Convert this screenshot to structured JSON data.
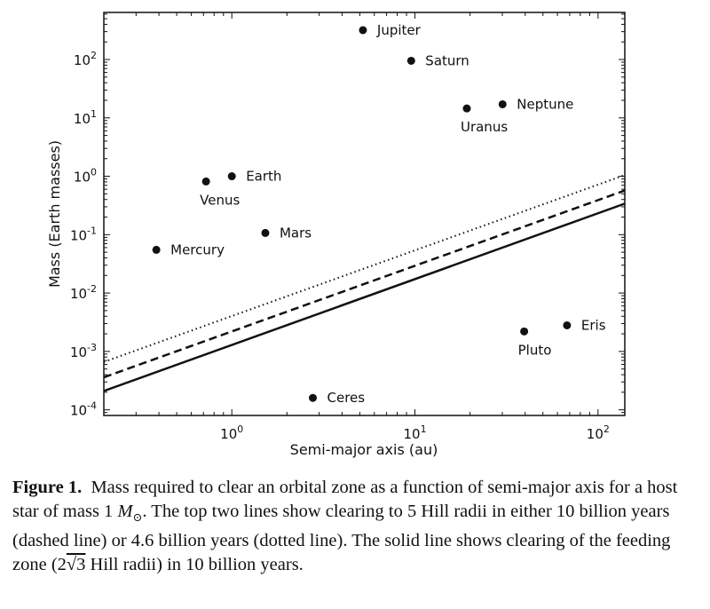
{
  "chart_data": {
    "type": "scatter",
    "xlabel": "Semi-major axis (au)",
    "ylabel": "Mass (Earth masses)",
    "xscale": "log",
    "yscale": "log",
    "xlim": [
      0.2,
      140
    ],
    "ylim": [
      8e-05,
      640
    ],
    "grid": false,
    "x_ticks": [
      {
        "value": 1,
        "base": "10",
        "exp": "0"
      },
      {
        "value": 10,
        "base": "10",
        "exp": "1"
      },
      {
        "value": 100,
        "base": "10",
        "exp": "2"
      }
    ],
    "y_ticks": [
      {
        "value": 0.0001,
        "base": "10",
        "exp": "-4"
      },
      {
        "value": 0.001,
        "base": "10",
        "exp": "-3"
      },
      {
        "value": 0.01,
        "base": "10",
        "exp": "-2"
      },
      {
        "value": 0.1,
        "base": "10",
        "exp": "-1"
      },
      {
        "value": 1,
        "base": "10",
        "exp": "0"
      },
      {
        "value": 10,
        "base": "10",
        "exp": "1"
      },
      {
        "value": 100,
        "base": "10",
        "exp": "2"
      }
    ],
    "points": [
      {
        "label": "Mercury",
        "x": 0.387,
        "y": 0.055,
        "label_pos": "right"
      },
      {
        "label": "Venus",
        "x": 0.723,
        "y": 0.815,
        "label_pos": "below"
      },
      {
        "label": "Earth",
        "x": 1.0,
        "y": 1.0,
        "label_pos": "right"
      },
      {
        "label": "Mars",
        "x": 1.524,
        "y": 0.107,
        "label_pos": "right"
      },
      {
        "label": "Ceres",
        "x": 2.77,
        "y": 0.00016,
        "label_pos": "right"
      },
      {
        "label": "Jupiter",
        "x": 5.2,
        "y": 318,
        "label_pos": "right"
      },
      {
        "label": "Saturn",
        "x": 9.54,
        "y": 95,
        "label_pos": "right"
      },
      {
        "label": "Uranus",
        "x": 19.2,
        "y": 14.5,
        "label_pos": "below"
      },
      {
        "label": "Neptune",
        "x": 30.1,
        "y": 17.1,
        "label_pos": "right"
      },
      {
        "label": "Pluto",
        "x": 39.5,
        "y": 0.0022,
        "label_pos": "below"
      },
      {
        "label": "Eris",
        "x": 67.7,
        "y": 0.0028,
        "label_pos": "right"
      }
    ],
    "lines": [
      {
        "style": "solid",
        "x": [
          0.2,
          140
        ],
        "y": [
          0.00021,
          0.34
        ]
      },
      {
        "style": "dashed",
        "x": [
          0.2,
          140
        ],
        "y": [
          0.00036,
          0.57
        ]
      },
      {
        "style": "dotted",
        "x": [
          0.2,
          140
        ],
        "y": [
          0.00066,
          1.05
        ]
      }
    ],
    "colors": {
      "marks": "#111111",
      "background": "#ffffff"
    }
  },
  "caption": {
    "label": "Figure 1.",
    "text1": "Mass required to clear an orbital zone as a function of semi-major axis for a host star of mass 1 ",
    "msun": "M",
    "sun_symbol": "⊙",
    "text2": ". The top two lines show clearing to 5 Hill radii in either 10 billion years (dashed line) or 4.6 billion years (dotted line). The solid line shows clearing of the feeding zone (2",
    "sqrt": "√3",
    "text3": " Hill radii) in 10 billion years."
  }
}
